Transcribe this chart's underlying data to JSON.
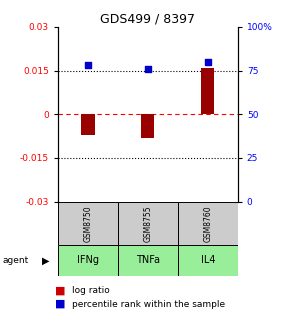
{
  "title": "GDS499 / 8397",
  "categories": [
    "IFNg",
    "TNFa",
    "IL4"
  ],
  "sample_labels": [
    "GSM8750",
    "GSM8755",
    "GSM8760"
  ],
  "log_ratios": [
    -0.007,
    -0.008,
    0.016
  ],
  "percentile_ranks": [
    78,
    76,
    80
  ],
  "ylim_left": [
    -0.03,
    0.03
  ],
  "ylim_right": [
    0,
    100
  ],
  "yticks_left": [
    -0.03,
    -0.015,
    0,
    0.015,
    0.03
  ],
  "yticks_right": [
    0,
    25,
    50,
    75,
    100
  ],
  "bar_color": "#990000",
  "dot_color": "#0000cc",
  "sample_bg": "#cccccc",
  "agent_row_color": "#99ee99",
  "legend_bar_color": "#cc0000",
  "legend_dot_color": "#0000cc",
  "hline_dotted": [
    -0.015,
    0.015
  ],
  "hline_dashed": [
    0
  ]
}
